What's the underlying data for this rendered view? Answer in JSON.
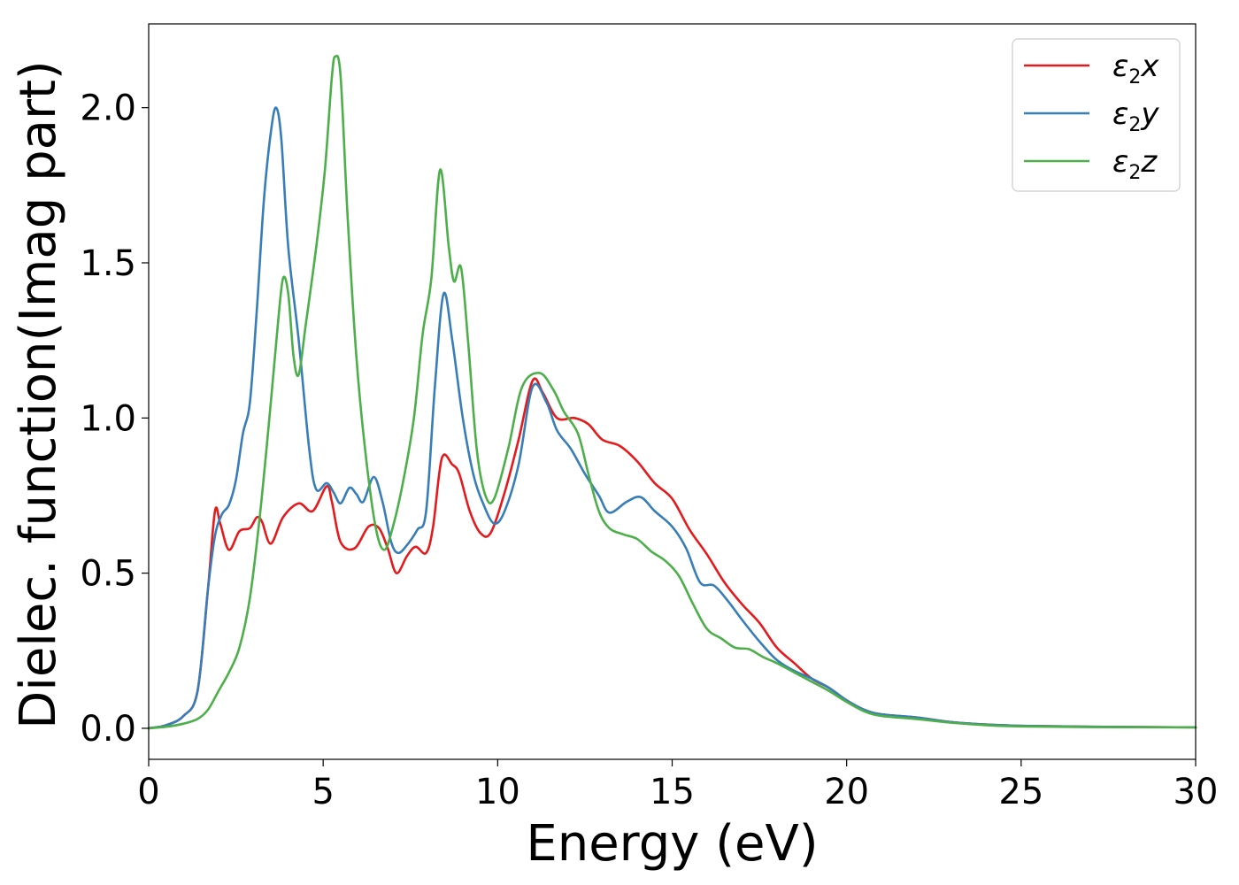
{
  "chart_data": {
    "type": "line",
    "xlabel": "Energy (eV)",
    "ylabel": "Dielec. function(Imag part)",
    "xlim": [
      0,
      30
    ],
    "ylim": [
      -0.1,
      2.27
    ],
    "xticks": [
      0,
      5,
      10,
      15,
      20,
      25,
      30
    ],
    "xtick_labels": [
      "0",
      "5",
      "10",
      "15",
      "20",
      "25",
      "30"
    ],
    "yticks": [
      0.0,
      0.5,
      1.0,
      1.5,
      2.0
    ],
    "ytick_labels": [
      "0.0",
      "0.5",
      "1.0",
      "1.5",
      "2.0"
    ],
    "grid": false,
    "legend_position": "top-right",
    "series": [
      {
        "name": "ε2x",
        "legend_base": "ε",
        "legend_sub": "2",
        "legend_var": "x",
        "color": "#e41a1c",
        "points": [
          [
            0,
            0
          ],
          [
            0.5,
            0.01
          ],
          [
            1.0,
            0.04
          ],
          [
            1.4,
            0.12
          ],
          [
            1.7,
            0.45
          ],
          [
            1.9,
            0.7
          ],
          [
            2.05,
            0.66
          ],
          [
            2.3,
            0.575
          ],
          [
            2.6,
            0.635
          ],
          [
            2.9,
            0.645
          ],
          [
            3.1,
            0.68
          ],
          [
            3.25,
            0.665
          ],
          [
            3.5,
            0.595
          ],
          [
            3.85,
            0.68
          ],
          [
            4.3,
            0.725
          ],
          [
            4.7,
            0.7
          ],
          [
            5.1,
            0.78
          ],
          [
            5.25,
            0.73
          ],
          [
            5.5,
            0.6
          ],
          [
            5.9,
            0.58
          ],
          [
            6.3,
            0.65
          ],
          [
            6.6,
            0.645
          ],
          [
            6.85,
            0.58
          ],
          [
            7.1,
            0.5
          ],
          [
            7.4,
            0.555
          ],
          [
            7.65,
            0.585
          ],
          [
            7.95,
            0.565
          ],
          [
            8.15,
            0.65
          ],
          [
            8.4,
            0.87
          ],
          [
            8.7,
            0.85
          ],
          [
            8.9,
            0.82
          ],
          [
            9.2,
            0.7
          ],
          [
            9.5,
            0.63
          ],
          [
            9.8,
            0.63
          ],
          [
            10.2,
            0.76
          ],
          [
            10.6,
            0.93
          ],
          [
            11.0,
            1.12
          ],
          [
            11.3,
            1.08
          ],
          [
            11.7,
            1.0
          ],
          [
            12.2,
            1.0
          ],
          [
            12.6,
            0.98
          ],
          [
            13.0,
            0.93
          ],
          [
            13.5,
            0.91
          ],
          [
            14.0,
            0.86
          ],
          [
            14.5,
            0.79
          ],
          [
            15.0,
            0.74
          ],
          [
            15.5,
            0.64
          ],
          [
            16.0,
            0.56
          ],
          [
            16.5,
            0.47
          ],
          [
            17.0,
            0.4
          ],
          [
            17.5,
            0.34
          ],
          [
            18.0,
            0.26
          ],
          [
            18.5,
            0.21
          ],
          [
            19.0,
            0.16
          ],
          [
            19.5,
            0.13
          ],
          [
            20.0,
            0.09
          ],
          [
            20.5,
            0.06
          ],
          [
            21.0,
            0.045
          ],
          [
            22.0,
            0.035
          ],
          [
            23.0,
            0.02
          ],
          [
            24.0,
            0.012
          ],
          [
            25.0,
            0.008
          ],
          [
            27.0,
            0.005
          ],
          [
            30.0,
            0.003
          ]
        ]
      },
      {
        "name": "ε2y",
        "legend_base": "ε",
        "legend_sub": "2",
        "legend_var": "y",
        "color": "#377eb8",
        "points": [
          [
            0,
            0
          ],
          [
            0.5,
            0.01
          ],
          [
            1.0,
            0.04
          ],
          [
            1.4,
            0.12
          ],
          [
            1.7,
            0.45
          ],
          [
            1.9,
            0.62
          ],
          [
            2.1,
            0.69
          ],
          [
            2.3,
            0.72
          ],
          [
            2.5,
            0.8
          ],
          [
            2.7,
            0.95
          ],
          [
            2.9,
            1.05
          ],
          [
            3.1,
            1.35
          ],
          [
            3.3,
            1.7
          ],
          [
            3.5,
            1.92
          ],
          [
            3.65,
            2.0
          ],
          [
            3.8,
            1.9
          ],
          [
            4.0,
            1.55
          ],
          [
            4.3,
            1.25
          ],
          [
            4.6,
            0.9
          ],
          [
            4.8,
            0.77
          ],
          [
            5.1,
            0.79
          ],
          [
            5.3,
            0.76
          ],
          [
            5.5,
            0.725
          ],
          [
            5.75,
            0.775
          ],
          [
            5.95,
            0.755
          ],
          [
            6.15,
            0.73
          ],
          [
            6.45,
            0.81
          ],
          [
            6.7,
            0.73
          ],
          [
            6.95,
            0.6
          ],
          [
            7.15,
            0.565
          ],
          [
            7.4,
            0.59
          ],
          [
            7.7,
            0.64
          ],
          [
            7.95,
            0.7
          ],
          [
            8.2,
            1.1
          ],
          [
            8.45,
            1.4
          ],
          [
            8.7,
            1.25
          ],
          [
            9.0,
            1.0
          ],
          [
            9.3,
            0.82
          ],
          [
            9.6,
            0.72
          ],
          [
            9.9,
            0.66
          ],
          [
            10.2,
            0.7
          ],
          [
            10.6,
            0.85
          ],
          [
            11.0,
            1.1
          ],
          [
            11.4,
            1.05
          ],
          [
            11.7,
            0.96
          ],
          [
            12.1,
            0.9
          ],
          [
            12.5,
            0.82
          ],
          [
            12.9,
            0.75
          ],
          [
            13.2,
            0.695
          ],
          [
            13.7,
            0.73
          ],
          [
            14.1,
            0.745
          ],
          [
            14.5,
            0.7
          ],
          [
            15.0,
            0.65
          ],
          [
            15.4,
            0.58
          ],
          [
            15.8,
            0.47
          ],
          [
            16.2,
            0.46
          ],
          [
            16.6,
            0.41
          ],
          [
            17.0,
            0.35
          ],
          [
            17.5,
            0.28
          ],
          [
            18.0,
            0.22
          ],
          [
            18.5,
            0.185
          ],
          [
            19.0,
            0.16
          ],
          [
            19.5,
            0.13
          ],
          [
            20.0,
            0.09
          ],
          [
            20.5,
            0.06
          ],
          [
            21.0,
            0.045
          ],
          [
            22.0,
            0.035
          ],
          [
            23.0,
            0.02
          ],
          [
            24.0,
            0.012
          ],
          [
            25.0,
            0.008
          ],
          [
            27.0,
            0.005
          ],
          [
            30.0,
            0.003
          ]
        ]
      },
      {
        "name": "ε2z",
        "legend_base": "ε",
        "legend_sub": "2",
        "legend_var": "z",
        "color": "#4daf4a",
        "points": [
          [
            0,
            0
          ],
          [
            0.5,
            0.005
          ],
          [
            1.0,
            0.015
          ],
          [
            1.4,
            0.03
          ],
          [
            1.7,
            0.06
          ],
          [
            2.0,
            0.12
          ],
          [
            2.3,
            0.18
          ],
          [
            2.6,
            0.26
          ],
          [
            2.9,
            0.42
          ],
          [
            3.2,
            0.7
          ],
          [
            3.5,
            1.05
          ],
          [
            3.7,
            1.3
          ],
          [
            3.85,
            1.45
          ],
          [
            4.0,
            1.4
          ],
          [
            4.15,
            1.2
          ],
          [
            4.3,
            1.14
          ],
          [
            4.5,
            1.3
          ],
          [
            4.8,
            1.55
          ],
          [
            5.05,
            1.8
          ],
          [
            5.25,
            2.1
          ],
          [
            5.35,
            2.165
          ],
          [
            5.5,
            2.1
          ],
          [
            5.7,
            1.65
          ],
          [
            5.95,
            1.2
          ],
          [
            6.2,
            0.9
          ],
          [
            6.5,
            0.65
          ],
          [
            6.75,
            0.575
          ],
          [
            7.0,
            0.65
          ],
          [
            7.3,
            0.8
          ],
          [
            7.6,
            1.0
          ],
          [
            7.85,
            1.27
          ],
          [
            8.1,
            1.45
          ],
          [
            8.35,
            1.8
          ],
          [
            8.6,
            1.55
          ],
          [
            8.75,
            1.44
          ],
          [
            8.95,
            1.485
          ],
          [
            9.15,
            1.25
          ],
          [
            9.4,
            0.9
          ],
          [
            9.65,
            0.75
          ],
          [
            9.9,
            0.74
          ],
          [
            10.3,
            0.9
          ],
          [
            10.7,
            1.1
          ],
          [
            11.2,
            1.145
          ],
          [
            11.6,
            1.09
          ],
          [
            11.9,
            1.02
          ],
          [
            12.3,
            0.95
          ],
          [
            12.6,
            0.82
          ],
          [
            12.9,
            0.7
          ],
          [
            13.2,
            0.645
          ],
          [
            13.6,
            0.625
          ],
          [
            14.0,
            0.61
          ],
          [
            14.4,
            0.57
          ],
          [
            14.8,
            0.54
          ],
          [
            15.2,
            0.49
          ],
          [
            15.6,
            0.4
          ],
          [
            16.0,
            0.32
          ],
          [
            16.4,
            0.29
          ],
          [
            16.8,
            0.26
          ],
          [
            17.2,
            0.255
          ],
          [
            17.6,
            0.23
          ],
          [
            18.0,
            0.21
          ],
          [
            18.5,
            0.18
          ],
          [
            19.0,
            0.15
          ],
          [
            19.5,
            0.12
          ],
          [
            20.0,
            0.085
          ],
          [
            20.5,
            0.055
          ],
          [
            21.0,
            0.04
          ],
          [
            22.0,
            0.03
          ],
          [
            23.0,
            0.018
          ],
          [
            24.0,
            0.01
          ],
          [
            25.0,
            0.006
          ],
          [
            27.0,
            0.004
          ],
          [
            30.0,
            0.003
          ]
        ]
      }
    ]
  }
}
